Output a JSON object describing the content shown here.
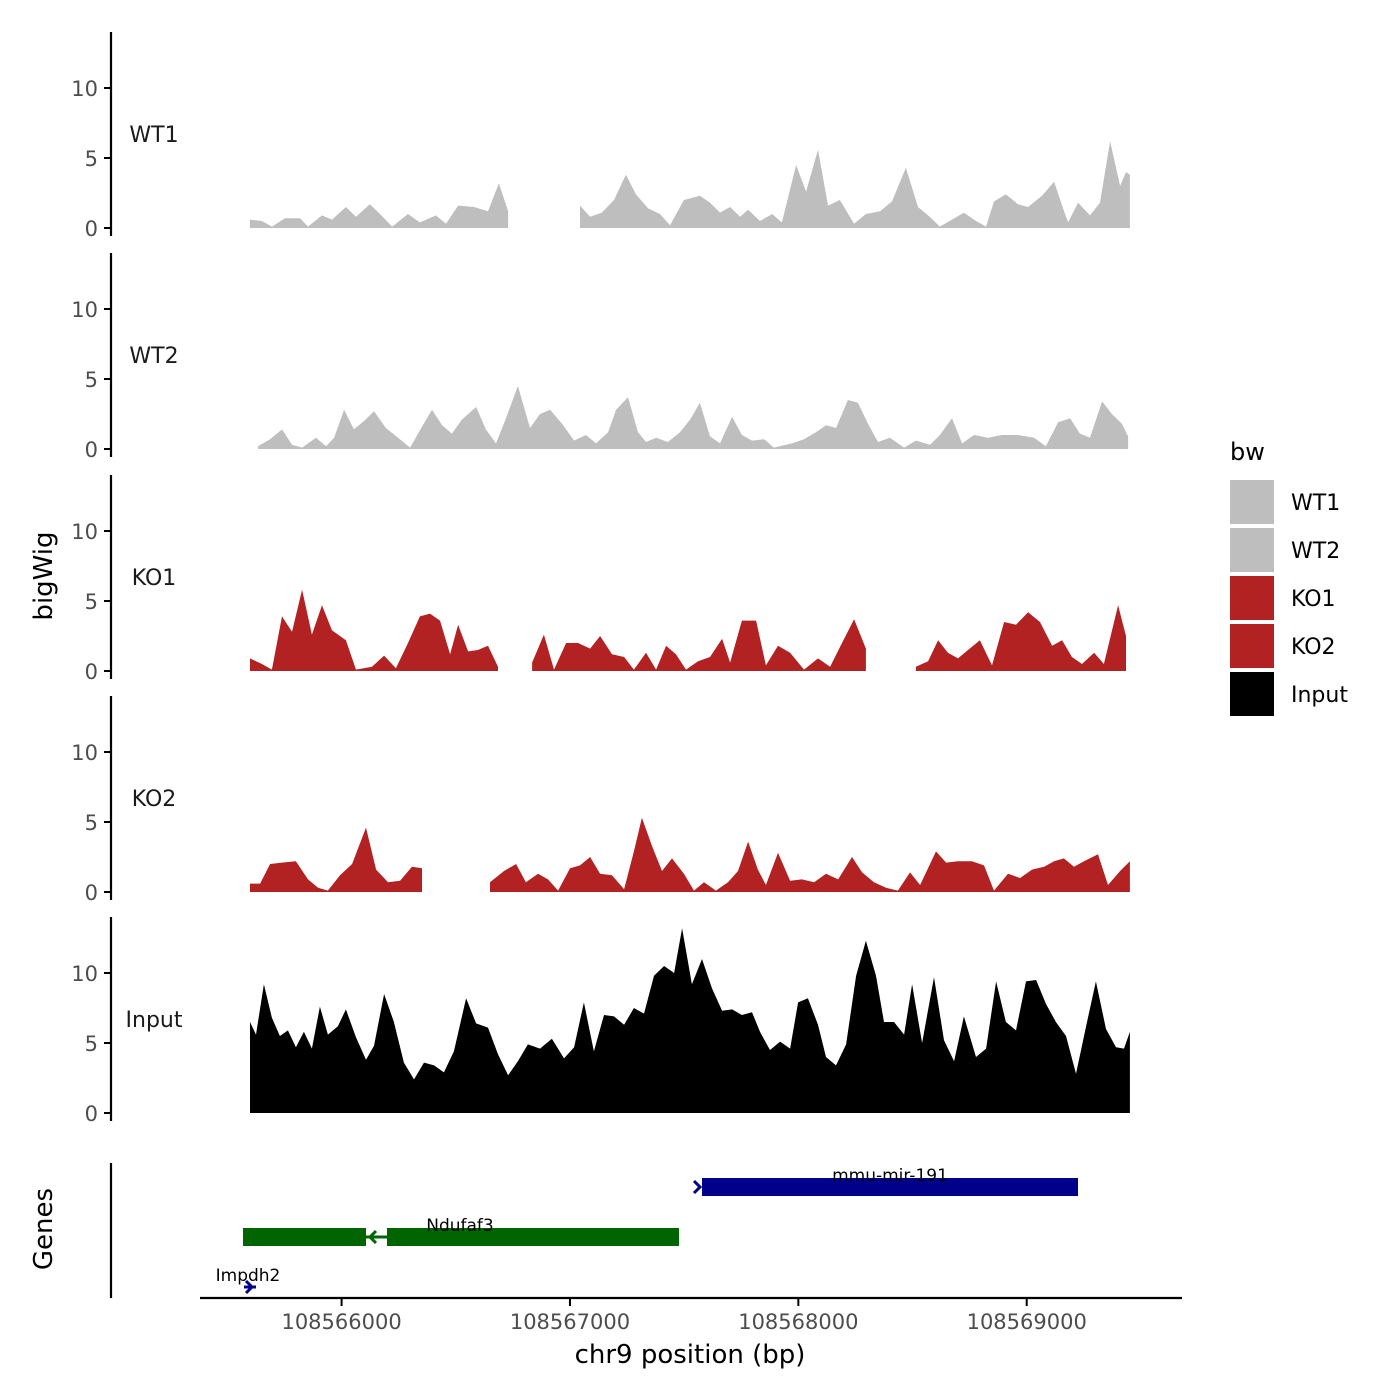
{
  "chart_data": {
    "type": "area",
    "ylabel": "bigWig",
    "xlabel": "chr9 position (bp)",
    "genes_label": "Genes",
    "x_ticks": [
      108566000,
      108567000,
      108568000,
      108569000
    ],
    "x_tick_labels": [
      "108566000",
      "108567000",
      "108568000",
      "108569000"
    ],
    "xlim": [
      108565380,
      108569680
    ],
    "ylim": [
      0,
      14
    ],
    "y_ticks": [
      0,
      5,
      10
    ],
    "y_tick_labels": [
      "0",
      "5",
      "10"
    ],
    "legend": {
      "title": "bw",
      "position": "right",
      "entries": [
        {
          "label": "WT1",
          "color": "#bebebe"
        },
        {
          "label": "WT2",
          "color": "#bebebe"
        },
        {
          "label": "KO1",
          "color": "#b22222"
        },
        {
          "label": "KO2",
          "color": "#b22222"
        },
        {
          "label": "Input",
          "color": "#000000"
        }
      ]
    }
  },
  "colors": {
    "wt": "#bebebe",
    "ko": "#b22222",
    "input": "#000000",
    "gene_plus": "#00008b",
    "gene_minus": "#006400",
    "axis": "#000000",
    "tick_text": "#4d4d4d"
  }
}
